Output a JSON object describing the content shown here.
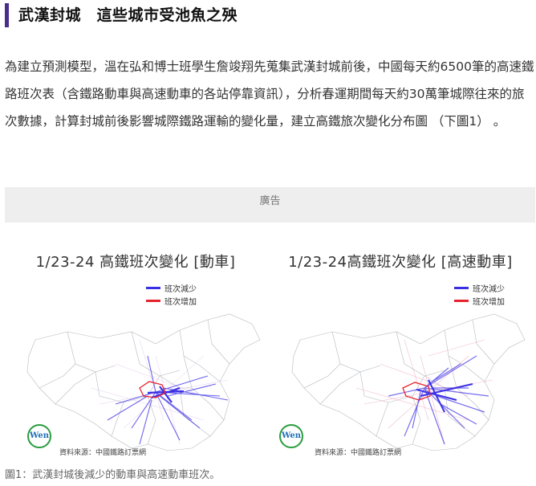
{
  "article": {
    "heading": "武漢封城　這些城市受池魚之殃",
    "paragraph": "為建立預測模型，溫在弘和博士班學生詹竣翔先蒐集武漢封城前後，中國每天約6500筆的高速鐵路班次表（含鐵路動車與高速動車的各站停靠資訊），分析春運期間每天約30萬筆城際往來的旅次數據，計算封城前後影響城際鐵路運輸的變化量，建立高鐵旅次變化分布圖 （下圖1） 。",
    "ad_label": "廣告",
    "caption": "圖1：武漢封城後減少的動車與高速動車班次。"
  },
  "figure": {
    "panels": [
      {
        "title": "1/23-24 高鐵班次變化 [動車]",
        "legend": {
          "decrease": "班次減少",
          "increase": "班次增加"
        },
        "logo_text": "Wen",
        "source": "資料來源：中國鐵路訂票網"
      },
      {
        "title": "1/23-24高鐵班次變化 [高速動車]",
        "legend": {
          "decrease": "班次減少",
          "increase": "班次增加"
        },
        "logo_text": "Wen",
        "source": "資料來源：中國鐵路訂票網"
      }
    ],
    "colors": {
      "decrease": "#3b2fe6",
      "increase": "#e6232d",
      "accent_bar": "#4a2c8a",
      "map_outline": "#9aa0a6"
    }
  }
}
